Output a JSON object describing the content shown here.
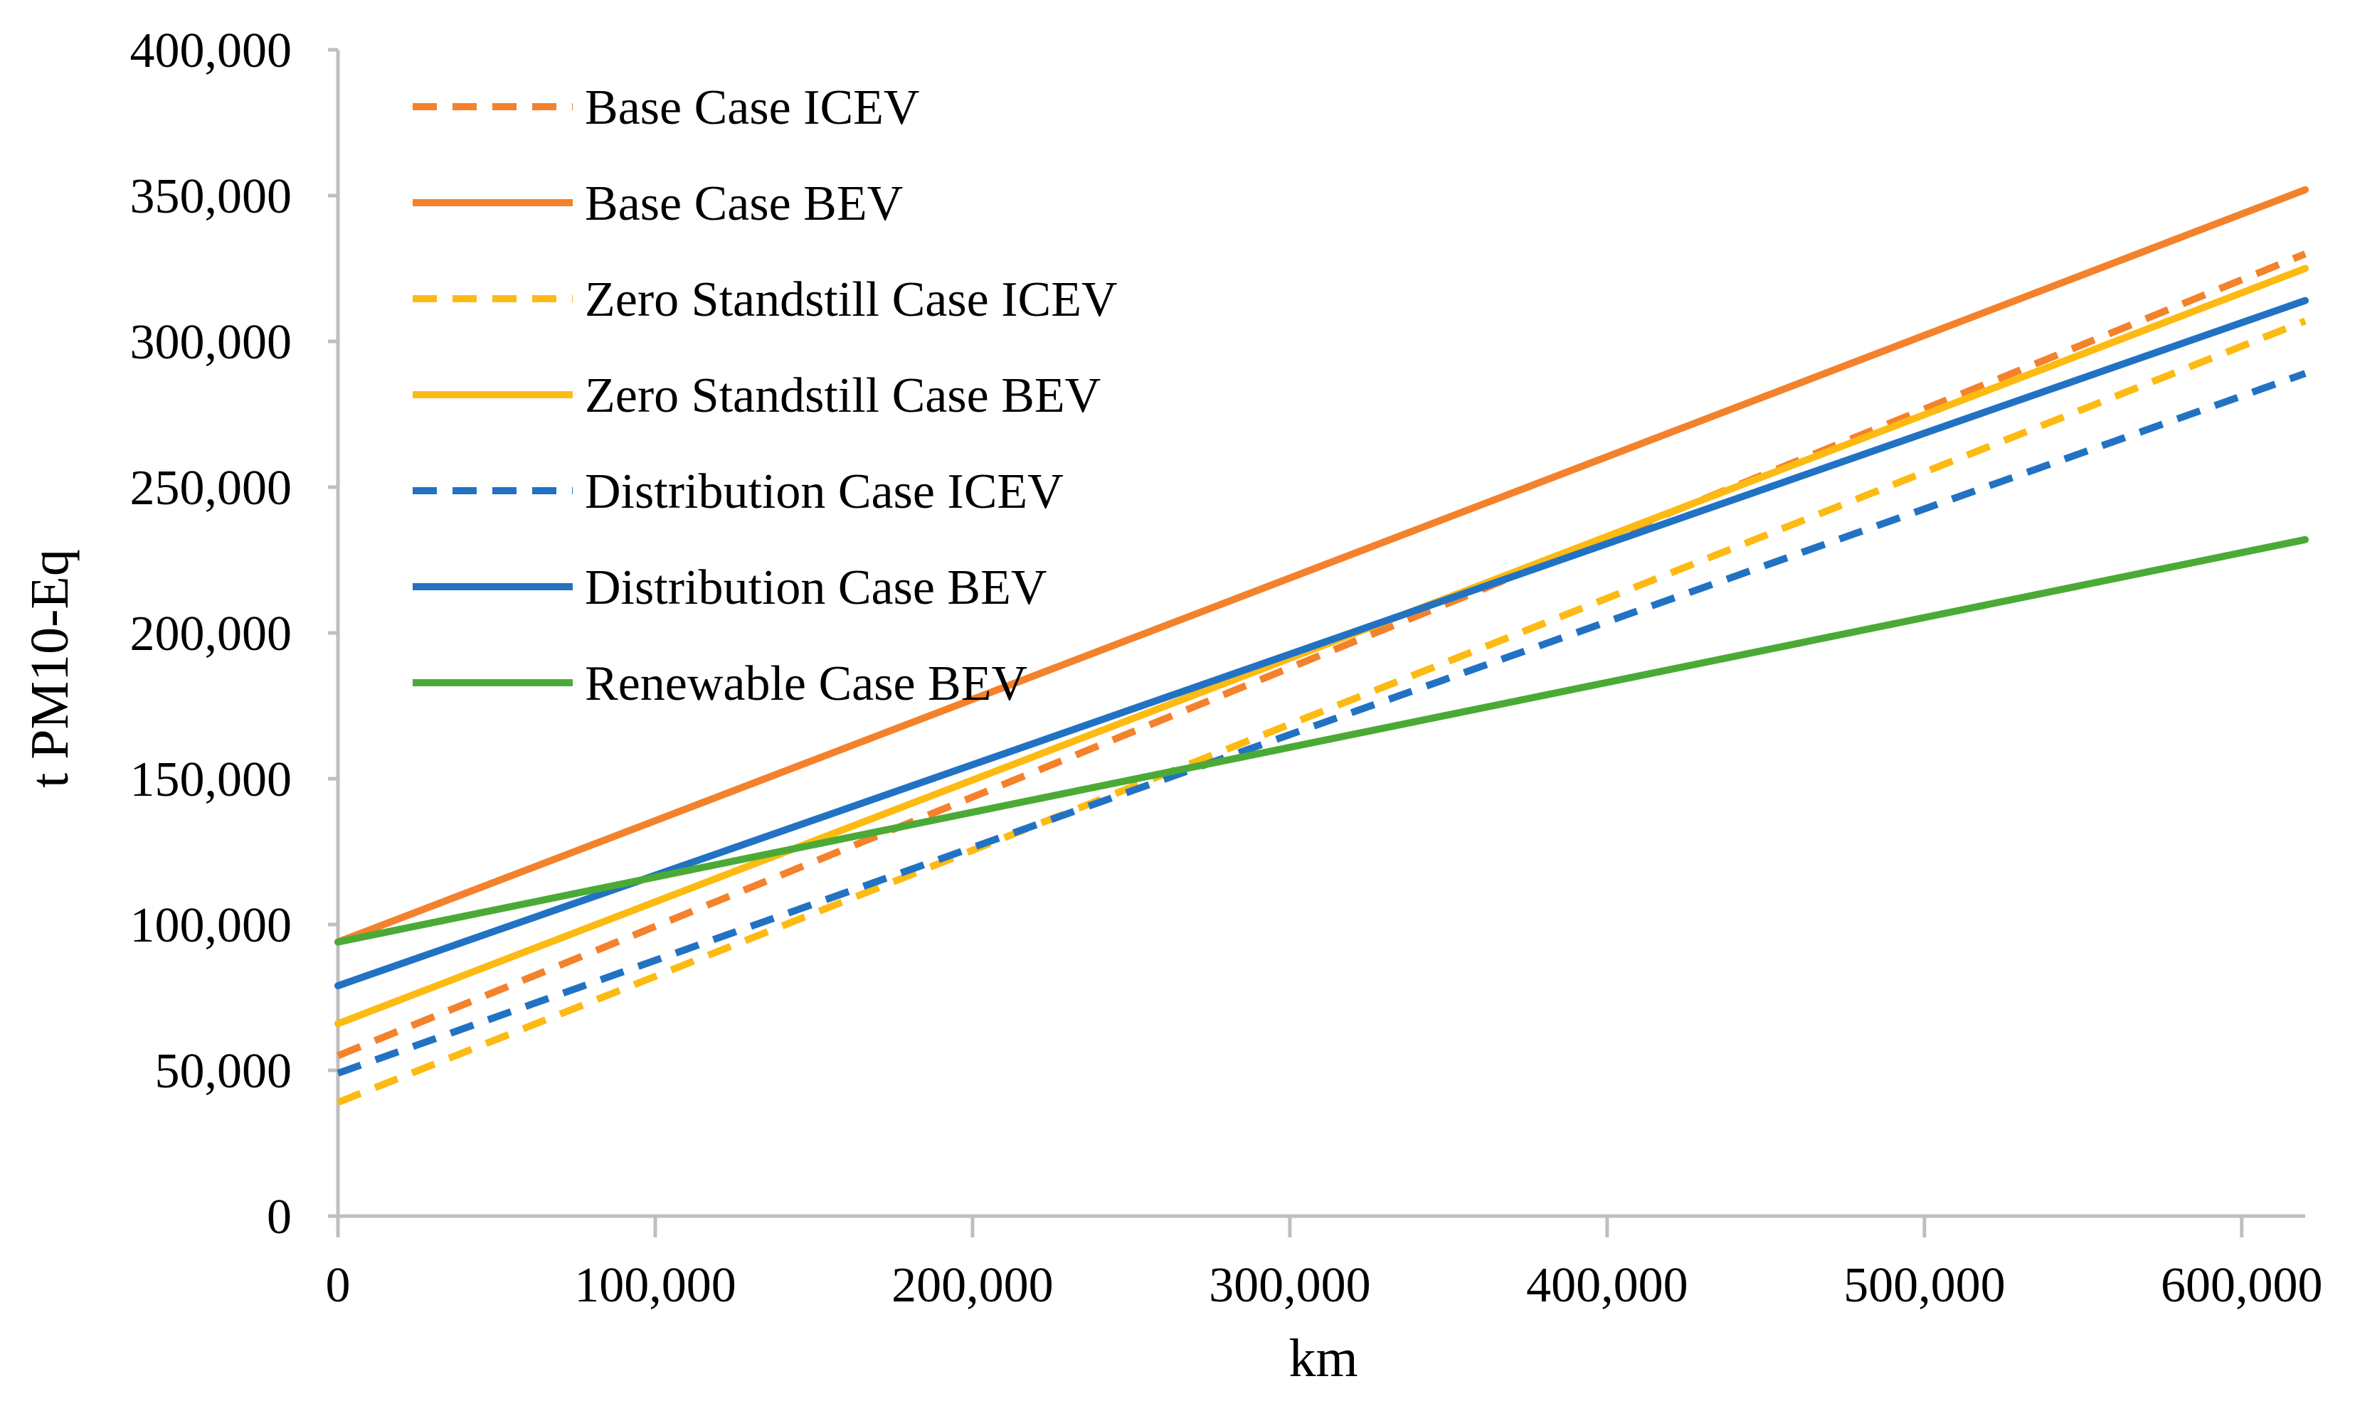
{
  "chart_data": {
    "type": "line",
    "title": "",
    "xlabel": "km",
    "ylabel": "t PM10-Eq",
    "xlim": [
      0,
      620000
    ],
    "ylim": [
      0,
      400000
    ],
    "x_ticks": [
      0,
      100000,
      200000,
      300000,
      400000,
      500000,
      600000
    ],
    "x_tick_labels": [
      "0",
      "100,000",
      "200,000",
      "300,000",
      "400,000",
      "500,000",
      "600,000"
    ],
    "y_ticks": [
      0,
      50000,
      100000,
      150000,
      200000,
      250000,
      300000,
      350000,
      400000
    ],
    "y_tick_labels": [
      "0",
      "50,000",
      "100,000",
      "150,000",
      "200,000",
      "250,000",
      "300,000",
      "350,000",
      "400,000"
    ],
    "grid": false,
    "legend_position": "top-left",
    "series": [
      {
        "name": "Base Case ICEV",
        "color": "#F4812B",
        "dashed": true,
        "x": [
          0,
          620000
        ],
        "y": [
          55000,
          330000
        ]
      },
      {
        "name": "Base Case BEV",
        "color": "#F4812B",
        "dashed": false,
        "x": [
          0,
          620000
        ],
        "y": [
          94000,
          352000
        ]
      },
      {
        "name": "Zero Standstill Case ICEV",
        "color": "#FDBA12",
        "dashed": true,
        "x": [
          0,
          620000
        ],
        "y": [
          39000,
          307000
        ]
      },
      {
        "name": "Zero Standstill Case BEV",
        "color": "#FDBA12",
        "dashed": false,
        "x": [
          0,
          620000
        ],
        "y": [
          66000,
          325000
        ]
      },
      {
        "name": "Distribution Case ICEV",
        "color": "#2272C3",
        "dashed": true,
        "x": [
          0,
          620000
        ],
        "y": [
          49000,
          289000
        ]
      },
      {
        "name": "Distribution Case BEV",
        "color": "#2272C3",
        "dashed": false,
        "x": [
          0,
          620000
        ],
        "y": [
          79000,
          314000
        ]
      },
      {
        "name": "Renewable Case BEV",
        "color": "#4BAA36",
        "dashed": false,
        "x": [
          0,
          620000
        ],
        "y": [
          94000,
          232000
        ]
      }
    ]
  },
  "style": {
    "axis_color": "#BFBFBF",
    "text_color": "#000000",
    "background": "#FFFFFF"
  }
}
